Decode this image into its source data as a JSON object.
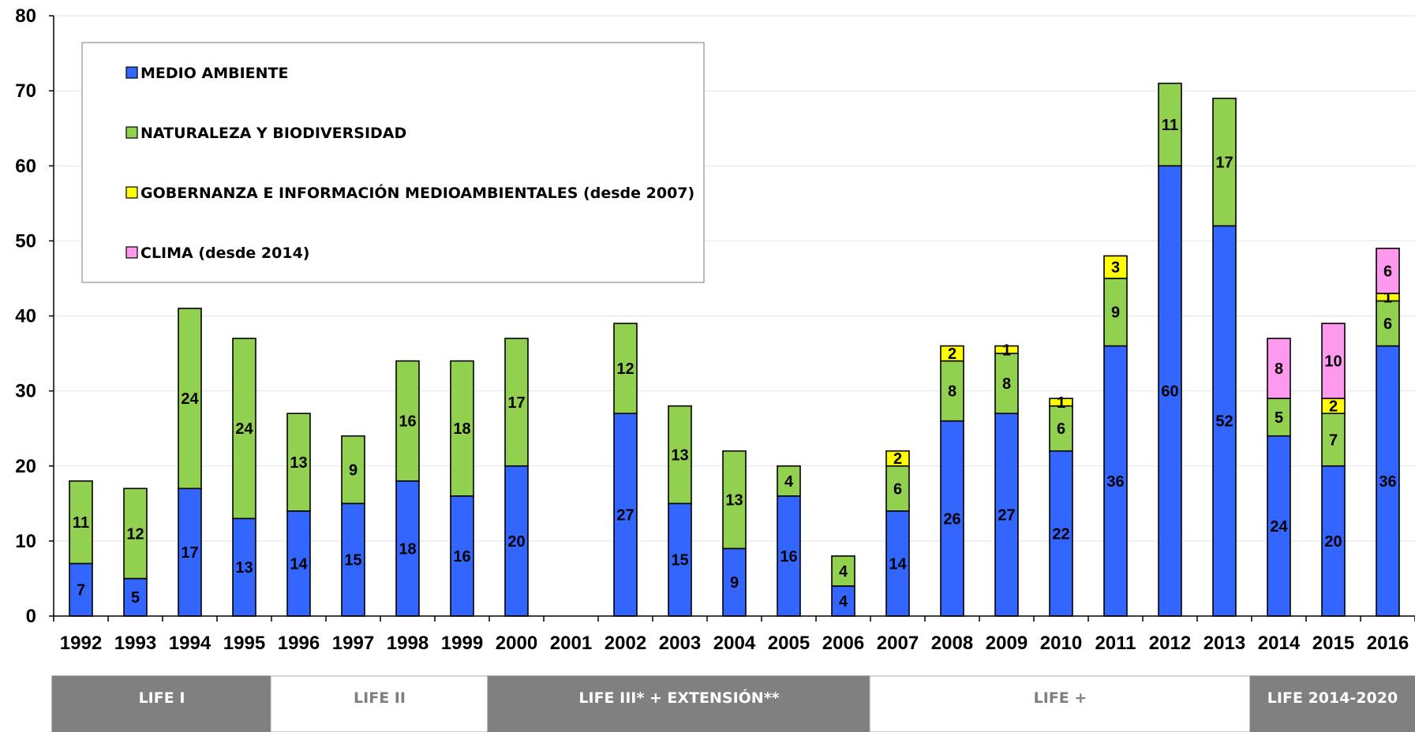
{
  "chart_data": {
    "type": "bar",
    "stacked": true,
    "categories": [
      "1992",
      "1993",
      "1994",
      "1995",
      "1996",
      "1997",
      "1998",
      "1999",
      "2000",
      "2001",
      "2002",
      "2003",
      "2004",
      "2005",
      "2006",
      "2007",
      "2008",
      "2009",
      "2010",
      "2011",
      "2012",
      "2013",
      "2014",
      "2015",
      "2016"
    ],
    "series": [
      {
        "name": "MEDIO AMBIENTE",
        "color": "#3366ff",
        "values": [
          7,
          5,
          17,
          13,
          14,
          15,
          18,
          16,
          20,
          0,
          27,
          15,
          9,
          16,
          4,
          14,
          26,
          27,
          22,
          36,
          60,
          52,
          24,
          20,
          36
        ]
      },
      {
        "name": "NATURALEZA Y BIODIVERSIDAD",
        "color": "#92d050",
        "values": [
          11,
          12,
          24,
          24,
          13,
          9,
          16,
          18,
          17,
          0,
          12,
          13,
          13,
          4,
          4,
          6,
          8,
          8,
          6,
          9,
          11,
          17,
          5,
          7,
          6
        ]
      },
      {
        "name": "GOBERNANZA E INFORMACIÓN MEDIOAMBIENTALES (desde 2007)",
        "color": "#ffff00",
        "values": [
          0,
          0,
          0,
          0,
          0,
          0,
          0,
          0,
          0,
          0,
          0,
          0,
          0,
          0,
          0,
          2,
          2,
          1,
          1,
          3,
          0,
          0,
          0,
          2,
          1
        ]
      },
      {
        "name": "CLIMA (desde 2014)",
        "color": "#ff99ee",
        "values": [
          0,
          0,
          0,
          0,
          0,
          0,
          0,
          0,
          0,
          0,
          0,
          0,
          0,
          0,
          0,
          0,
          0,
          0,
          0,
          0,
          0,
          0,
          8,
          10,
          6
        ]
      }
    ],
    "y_ticks": [
      "0",
      "10",
      "20",
      "30",
      "40",
      "50",
      "60",
      "70",
      "80"
    ],
    "ylim": [
      0,
      80
    ],
    "grid": true,
    "legend_position": "top-left",
    "title": "",
    "xlabel": "",
    "ylabel": ""
  },
  "periods": [
    {
      "label": "LIFE I",
      "start": "1992",
      "end": "1995",
      "fill": "#808080",
      "text_color": "#ffffff"
    },
    {
      "label": "LIFE II",
      "start": "1996",
      "end": "1999",
      "fill": "#ffffff",
      "text_color": "#7f7f7f"
    },
    {
      "label": "LIFE III* + EXTENSIÓN**",
      "start": "2000",
      "end": "2006",
      "fill": "#808080",
      "text_color": "#ffffff"
    },
    {
      "label": "LIFE +",
      "start": "2007",
      "end": "2013",
      "fill": "#ffffff",
      "text_color": "#7f7f7f"
    },
    {
      "label": "LIFE 2014-2020",
      "start": "2014",
      "end": "2016",
      "fill": "#808080",
      "text_color": "#ffffff"
    }
  ]
}
